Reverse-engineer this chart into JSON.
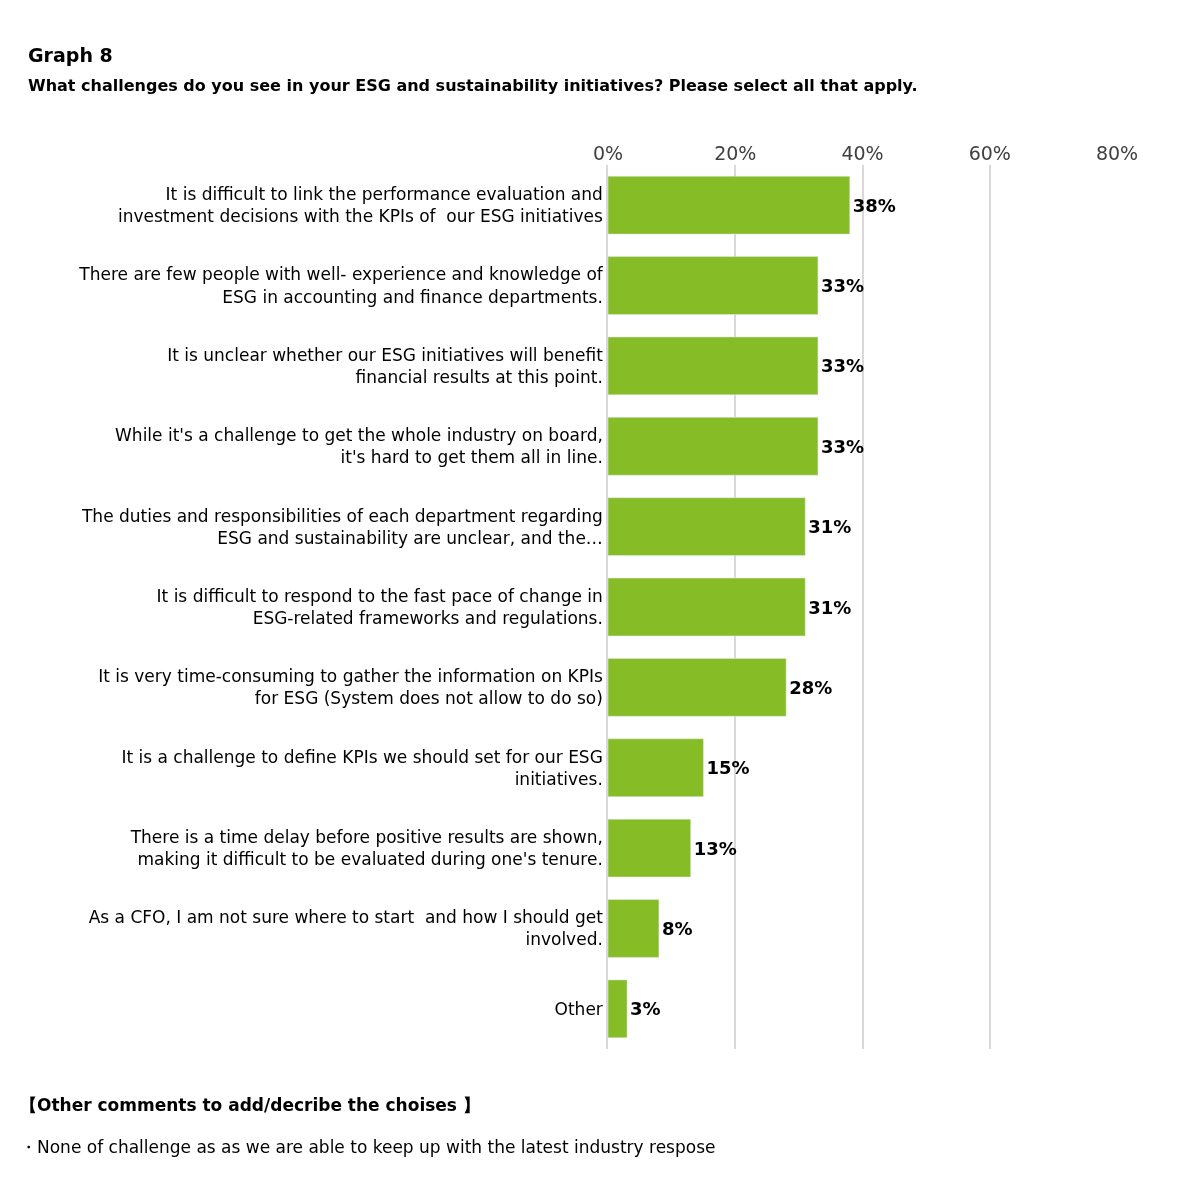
{
  "chart_data": {
    "type": "bar",
    "orientation": "horizontal",
    "title": "Graph 8",
    "subtitle": "What challenges do you see in your ESG and sustainability initiatives? Please select all that apply.",
    "categories": [
      "It is difficult to link the performance evaluation and investment decisions with the KPIs of  our ESG initiatives",
      "There are few people with well- experience and knowledge of ESG in accounting and finance departments.",
      "It is unclear whether our ESG initiatives will benefit financial results at this point.",
      "While it's a challenge to get the whole industry on board, it's hard to get them all in line.",
      "The duties and responsibilities of each department regarding ESG and sustainability are unclear, and the…",
      "It is difficult to respond to the fast pace of change in ESG-related frameworks and regulations.",
      "It is very time-consuming to gather the information on KPIs for ESG (System does not allow to do so)",
      "It is a challenge to define KPIs we should set for our ESG initiatives.",
      "There is a time delay before positive results are shown, making it difficult to be evaluated during one's tenure.",
      "As a CFO, I am not sure where to start  and how I should get involved.",
      "Other"
    ],
    "values": [
      38,
      33,
      33,
      33,
      31,
      31,
      28,
      15,
      13,
      8,
      3
    ],
    "value_labels": [
      "38%",
      "33%",
      "33%",
      "33%",
      "31%",
      "31%",
      "28%",
      "15%",
      "13%",
      "8%",
      "3%"
    ],
    "color": "#86bc25",
    "xlim": [
      0,
      80
    ],
    "xticks": [
      {
        "value": 0,
        "label": "0%"
      },
      {
        "value": 20,
        "label": "20%"
      },
      {
        "value": 40,
        "label": "40%"
      },
      {
        "value": 60,
        "label": "60%"
      },
      {
        "value": 80,
        "label": "80%"
      }
    ],
    "grid": "x",
    "annotations": [
      "【Other comments to add/decribe the choises 】",
      "・None of challenge as as we are able to keep up with the latest industry respose"
    ]
  }
}
